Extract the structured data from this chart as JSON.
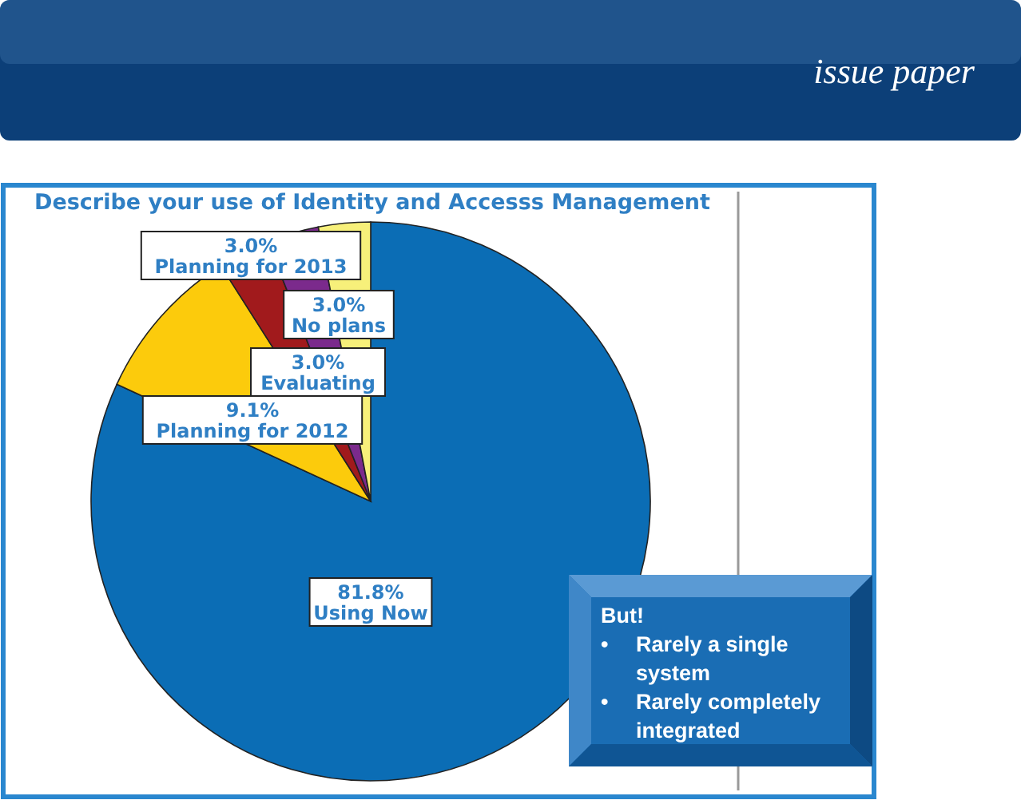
{
  "chart_data": {
    "type": "pie",
    "title": "Describe your use of Identity and Accesss Management",
    "categories": [
      "Using Now",
      "Planning for 2012",
      "Planning for 2013",
      "Evaluating",
      "No plans"
    ],
    "values": [
      81.8,
      9.1,
      3.0,
      3.0,
      3.0
    ],
    "colors": [
      "#0b6db5",
      "#fccb0c",
      "#a11a1c",
      "#7b2a8c",
      "#f7f07a"
    ],
    "value_labels": [
      "81.8%",
      "9.1%",
      "3.0%",
      "3.0%",
      "3.0%"
    ],
    "annotations": [
      "issue paper",
      "But!\n• Rarely a single system\n• Rarely completely integrated"
    ]
  }
}
